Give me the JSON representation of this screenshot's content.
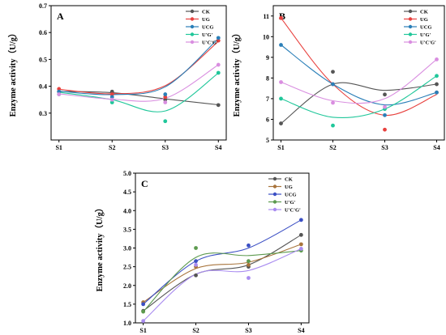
{
  "chart_data": [
    {
      "panel": "A",
      "type": "scatter",
      "ylabel": "Enzyme activity（U/g）",
      "categories": [
        "S1",
        "S2",
        "S3",
        "S4"
      ],
      "ylim": [
        0.2,
        0.7
      ],
      "yticks": [
        "0.3",
        "0.4",
        "0.5",
        "0.6",
        "0.7"
      ],
      "ytick_values": [
        0.3,
        0.4,
        0.5,
        0.6,
        0.7
      ],
      "legend_position": "top-right",
      "series": [
        {
          "name": "CK",
          "color": "#555555",
          "values": [
            0.38,
            0.38,
            0.35,
            0.33
          ],
          "curve": [
            0.381,
            0.376,
            0.353,
            0.331
          ]
        },
        {
          "name": "UG",
          "color": "#e8413e",
          "values": [
            0.39,
            0.37,
            0.36,
            0.57
          ],
          "curve": [
            0.389,
            0.372,
            0.402,
            0.567
          ]
        },
        {
          "name": "UCG",
          "color": "#2a7fb8",
          "values": [
            0.38,
            0.36,
            0.37,
            0.58
          ],
          "curve": [
            0.382,
            0.369,
            0.398,
            0.578
          ]
        },
        {
          "name": "U'G'",
          "color": "#20c79a",
          "values": [
            0.37,
            0.34,
            0.27,
            0.45
          ],
          "curve": [
            0.378,
            0.35,
            0.308,
            0.449
          ]
        },
        {
          "name": "U'C'G'",
          "color": "#d98ee0",
          "values": [
            0.37,
            0.35,
            0.34,
            0.48
          ],
          "curve": [
            0.372,
            0.352,
            0.355,
            0.48
          ]
        }
      ]
    },
    {
      "panel": "B",
      "type": "scatter",
      "ylabel": "Enzyme activity（U/g）",
      "categories": [
        "S1",
        "S2",
        "S3",
        "S4"
      ],
      "ylim": [
        5,
        11.5
      ],
      "yticks": [
        "5",
        "6",
        "7",
        "8",
        "9",
        "10",
        "11"
      ],
      "ytick_values": [
        5,
        6,
        7,
        8,
        9,
        10,
        11
      ],
      "legend_position": "top-right",
      "series": [
        {
          "name": "CK",
          "color": "#555555",
          "values": [
            5.8,
            8.3,
            7.2,
            7.7
          ],
          "curve": [
            5.8,
            7.7,
            7.4,
            7.7
          ]
        },
        {
          "name": "UG",
          "color": "#e8413e",
          "values": [
            10.9,
            7.7,
            5.5,
            7.3
          ],
          "curve": [
            10.9,
            7.7,
            6.2,
            7.2
          ]
        },
        {
          "name": "UCG",
          "color": "#2a7fb8",
          "values": [
            9.6,
            7.7,
            6.2,
            7.3
          ],
          "curve": [
            9.6,
            7.7,
            6.7,
            7.3
          ]
        },
        {
          "name": "U'G'",
          "color": "#20c79a",
          "values": [
            7.0,
            5.7,
            6.5,
            8.1
          ],
          "curve": [
            7.0,
            6.1,
            6.5,
            8.1
          ]
        },
        {
          "name": "U'C'G'",
          "color": "#d98ee0",
          "values": [
            7.8,
            6.8,
            6.6,
            8.9
          ],
          "curve": [
            7.8,
            6.9,
            7.0,
            8.9
          ]
        }
      ]
    },
    {
      "panel": "C",
      "type": "scatter",
      "ylabel": "Enzyme activity（U/g）",
      "categories": [
        "S1",
        "S2",
        "S3",
        "S4"
      ],
      "ylim": [
        1.0,
        5.0
      ],
      "yticks": [
        "1.0",
        "1.5",
        "2.0",
        "2.5",
        "3.0",
        "3.5",
        "4.0",
        "4.5",
        "5.0"
      ],
      "ytick_values": [
        1.0,
        1.5,
        2.0,
        2.5,
        3.0,
        3.5,
        4.0,
        4.5,
        5.0
      ],
      "legend_position": "top-right",
      "series": [
        {
          "name": "CK",
          "color": "#555555",
          "values": [
            1.32,
            2.27,
            2.5,
            3.35
          ],
          "curve": [
            1.32,
            2.3,
            2.55,
            3.35
          ]
        },
        {
          "name": "UG",
          "color": "#a8743c",
          "values": [
            1.55,
            2.5,
            2.55,
            3.1
          ],
          "curve": [
            1.55,
            2.45,
            2.62,
            3.1
          ]
        },
        {
          "name": "UCG",
          "color": "#3b4fc4",
          "values": [
            1.5,
            2.65,
            3.07,
            3.75
          ],
          "curve": [
            1.5,
            2.65,
            3.0,
            3.75
          ]
        },
        {
          "name": "U'G'",
          "color": "#5c9a4e",
          "values": [
            1.3,
            3.0,
            2.65,
            2.93
          ],
          "curve": [
            1.3,
            2.75,
            2.8,
            2.93
          ]
        },
        {
          "name": "U'C'G'",
          "color": "#a98cf0",
          "values": [
            1.05,
            2.55,
            2.2,
            2.98
          ],
          "curve": [
            1.05,
            2.3,
            2.4,
            2.98
          ]
        }
      ]
    }
  ]
}
